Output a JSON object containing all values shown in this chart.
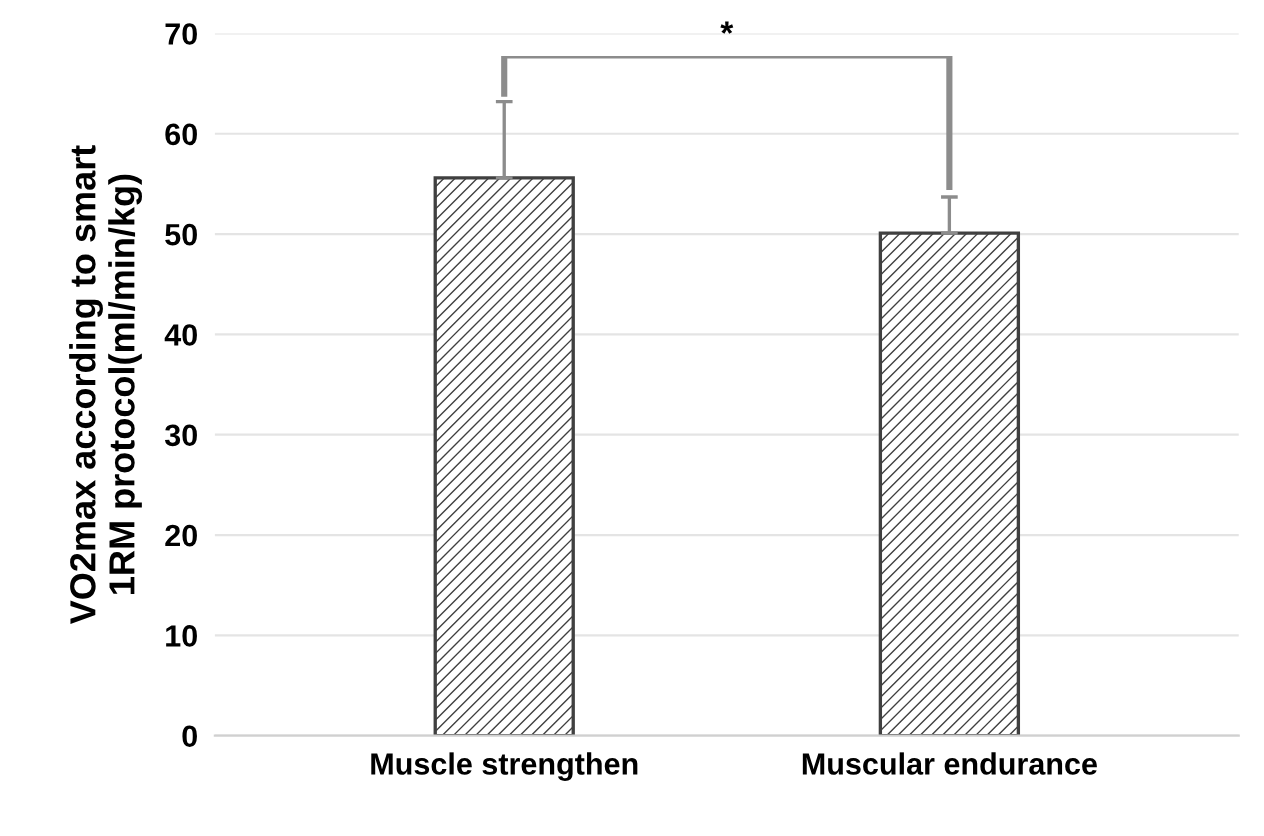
{
  "chart_data": {
    "type": "bar",
    "ylabel": "VO2max according to smart\n1RM protocol(ml/min/kg)",
    "categories": [
      "Muscle strengthen",
      "Muscular endurance"
    ],
    "values": [
      55.6,
      50.1
    ],
    "errors": [
      [
        55.6,
        63.2
      ],
      [
        50.1,
        53.7
      ]
    ],
    "color": "#404040",
    "ylim": [
      0,
      70
    ],
    "yticks": [
      0,
      10,
      20,
      30,
      40,
      50,
      60,
      70
    ],
    "grid": "y",
    "annotations": [
      "*"
    ]
  }
}
